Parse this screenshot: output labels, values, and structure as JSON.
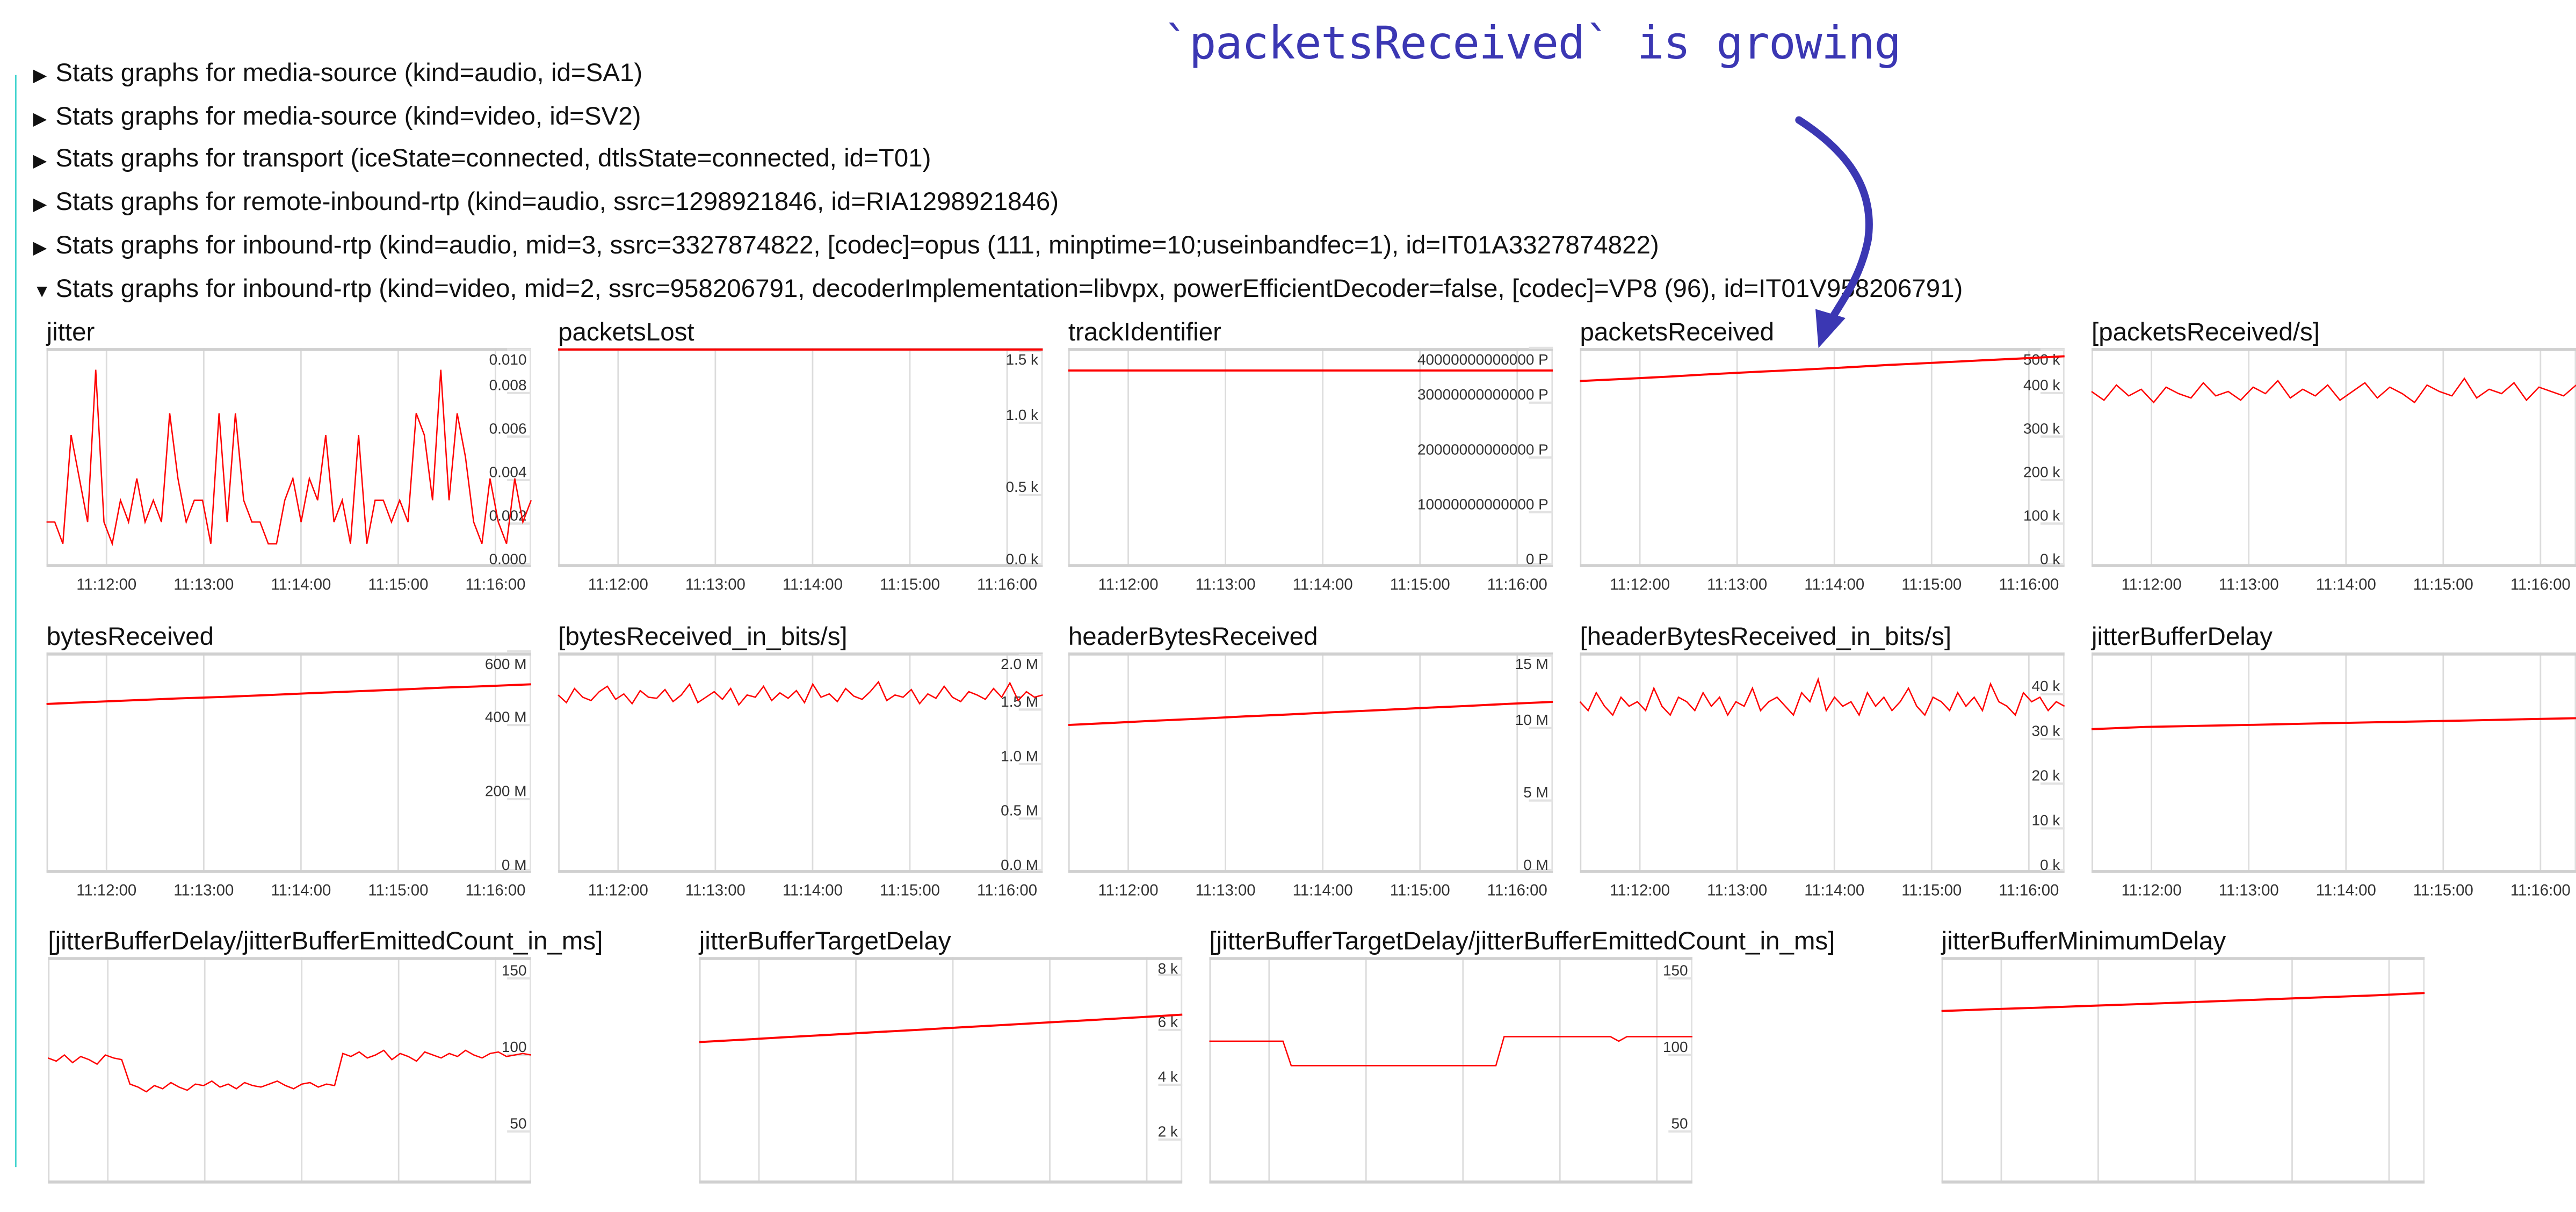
{
  "annotation": {
    "text": "`packetsReceived` is growing",
    "color": "#3b37b3",
    "arrow_icon": "curved-arrow-down"
  },
  "sections": [
    {
      "expanded": false,
      "label": "Stats graphs for media-source (kind=audio, id=SA1)"
    },
    {
      "expanded": false,
      "label": "Stats graphs for media-source (kind=video, id=SV2)"
    },
    {
      "expanded": false,
      "label": "Stats graphs for transport (iceState=connected, dtlsState=connected, id=T01)"
    },
    {
      "expanded": false,
      "label": "Stats graphs for remote-inbound-rtp (kind=audio, ssrc=1298921846, id=RIA1298921846)"
    },
    {
      "expanded": false,
      "label": "Stats graphs for inbound-rtp (kind=audio, mid=3, ssrc=3327874822, [codec]=opus (111, minptime=10;useinbandfec=1), id=IT01A3327874822)"
    },
    {
      "expanded": true,
      "label": "Stats graphs for inbound-rtp (kind=video, mid=2, ssrc=958206791, decoderImplementation=libvpx, powerEfficientDecoder=false, [codec]=VP8 (96), id=IT01V958206791)"
    }
  ],
  "icons": {
    "collapsed": "▶",
    "expanded": "▼"
  },
  "line_color": "#ff0000",
  "time_axis": {
    "xlim": [
      "11:11:23",
      "11:16:22"
    ],
    "ticks": [
      "11:12:00",
      "11:13:00",
      "11:14:00",
      "11:15:00",
      "11:16:00"
    ]
  },
  "chart_data": [
    {
      "type": "line",
      "title": "jitter",
      "ylim": [
        0,
        0.01
      ],
      "yticks": [
        {
          "value": 0,
          "label": "0.000"
        },
        {
          "value": 0.002,
          "label": "0.002"
        },
        {
          "value": 0.004,
          "label": "0.004"
        },
        {
          "value": 0.006,
          "label": "0.006"
        },
        {
          "value": 0.008,
          "label": "0.008"
        },
        {
          "value": 0.01,
          "label": "0.010"
        }
      ],
      "values": [
        0.002,
        0.002,
        0.001,
        0.006,
        0.004,
        0.002,
        0.009,
        0.002,
        0.001,
        0.003,
        0.002,
        0.004,
        0.002,
        0.003,
        0.002,
        0.007,
        0.004,
        0.002,
        0.003,
        0.003,
        0.001,
        0.007,
        0.002,
        0.007,
        0.003,
        0.002,
        0.002,
        0.001,
        0.001,
        0.003,
        0.004,
        0.002,
        0.004,
        0.003,
        0.006,
        0.002,
        0.003,
        0.001,
        0.006,
        0.001,
        0.003,
        0.003,
        0.002,
        0.003,
        0.002,
        0.007,
        0.006,
        0.003,
        0.009,
        0.003,
        0.007,
        0.005,
        0.002,
        0.001,
        0.004,
        0.002,
        0.001,
        0.004,
        0.002,
        0.003
      ]
    },
    {
      "type": "line",
      "title": "packetsLost",
      "ylim": [
        0,
        1510
      ],
      "yticks": [
        {
          "value": 0,
          "label": "0.0 k"
        },
        {
          "value": 500,
          "label": "0.5 k"
        },
        {
          "value": 1000,
          "label": "1.0 k"
        },
        {
          "value": 1500,
          "label": "1.5 k"
        }
      ],
      "values": [
        1508,
        1508
      ]
    },
    {
      "type": "line",
      "title": "trackIdentifier",
      "ylim": [
        0,
        39700000000000
      ],
      "yticks": [
        {
          "value": 0,
          "label": "0 P"
        },
        {
          "value": 10000000000000,
          "label": "10000000000000 P"
        },
        {
          "value": 20000000000000,
          "label": "20000000000000 P"
        },
        {
          "value": 30000000000000,
          "label": "30000000000000 P"
        },
        {
          "value": 40000000000000,
          "label": "40000000000000 P"
        }
      ],
      "values": [
        35600000000000,
        35600000000000
      ]
    },
    {
      "type": "line",
      "title": "packetsReceived",
      "ylim": [
        0,
        500000
      ],
      "yticks": [
        {
          "value": 0,
          "label": "0 k"
        },
        {
          "value": 100000,
          "label": "100 k"
        },
        {
          "value": 200000,
          "label": "200 k"
        },
        {
          "value": 300000,
          "label": "300 k"
        },
        {
          "value": 400000,
          "label": "400 k"
        },
        {
          "value": 500000,
          "label": "500 k"
        }
      ],
      "values": [
        424000,
        429000,
        434000,
        440000,
        445000,
        450000,
        455000,
        461000,
        466000,
        471000,
        476000,
        481000
      ]
    },
    {
      "type": "line",
      "title": "[packetsReceived/s]",
      "ylim": [
        0,
        100
      ],
      "yticks": [],
      "values": [
        80,
        76,
        83,
        78,
        81,
        75,
        82,
        79,
        77,
        84,
        78,
        80,
        76,
        82,
        79,
        85,
        77,
        81,
        78,
        83,
        76,
        80,
        84,
        77,
        82,
        79,
        75,
        83,
        80,
        78,
        86,
        77,
        81,
        79,
        84,
        76,
        82,
        80,
        78,
        83
      ]
    },
    {
      "type": "line",
      "title": "bytesReceived",
      "ylim": [
        0,
        592000000
      ],
      "yticks": [
        {
          "value": 0,
          "label": "0 M"
        },
        {
          "value": 200000000,
          "label": "200 M"
        },
        {
          "value": 400000000,
          "label": "400 M"
        },
        {
          "value": 600000000,
          "label": "600 M"
        }
      ],
      "values": [
        453000000,
        458000000,
        463000000,
        468000000,
        472000000,
        477000000,
        482000000,
        487000000,
        492000000,
        497000000,
        501000000,
        506000000
      ]
    },
    {
      "type": "line",
      "title": "[bytesReceived_in_bits/s]",
      "ylim": [
        0,
        2010000
      ],
      "yticks": [
        {
          "value": 0,
          "label": "0.0 M"
        },
        {
          "value": 500000,
          "label": "0.5 M"
        },
        {
          "value": 1000000,
          "label": "1.0 M"
        },
        {
          "value": 1500000,
          "label": "1.5 M"
        },
        {
          "value": 2000000,
          "label": "2.0 M"
        }
      ],
      "values": [
        1620000,
        1550000,
        1680000,
        1600000,
        1570000,
        1650000,
        1700000,
        1580000,
        1630000,
        1540000,
        1660000,
        1600000,
        1590000,
        1670000,
        1560000,
        1620000,
        1720000,
        1550000,
        1600000,
        1650000,
        1580000,
        1680000,
        1530000,
        1620000,
        1600000,
        1700000,
        1570000,
        1640000,
        1590000,
        1660000,
        1550000,
        1720000,
        1600000,
        1630000,
        1560000,
        1680000,
        1610000,
        1580000,
        1650000,
        1740000,
        1570000,
        1620000,
        1600000,
        1670000,
        1540000,
        1630000,
        1590000,
        1700000,
        1600000,
        1560000,
        1650000,
        1620000,
        1580000,
        1680000,
        1600000,
        1730000,
        1570000,
        1650000,
        1600000,
        1620000
      ]
    },
    {
      "type": "line",
      "title": "headerBytesReceived",
      "ylim": [
        0,
        15100000
      ],
      "yticks": [
        {
          "value": 0,
          "label": "0 M"
        },
        {
          "value": 5000000,
          "label": "5 M"
        },
        {
          "value": 10000000,
          "label": "10 M"
        },
        {
          "value": 15000000,
          "label": "15 M"
        }
      ],
      "values": [
        10100000,
        10250000,
        10400000,
        10540000,
        10690000,
        10830000,
        10980000,
        11120000,
        11270000,
        11410000,
        11560000,
        11700000
      ]
    },
    {
      "type": "line",
      "title": "[headerBytesReceived_in_bits/s]",
      "ylim": [
        0,
        49000
      ],
      "yticks": [
        {
          "value": 0,
          "label": "0 k"
        },
        {
          "value": 10000,
          "label": "10 k"
        },
        {
          "value": 20000,
          "label": "20 k"
        },
        {
          "value": 30000,
          "label": "30 k"
        },
        {
          "value": 40000,
          "label": "40 k"
        },
        {
          "value": 50000,
          "label": "50 k"
        }
      ],
      "values": [
        38000,
        36000,
        40000,
        37000,
        35000,
        39000,
        37000,
        38000,
        36000,
        41000,
        37000,
        35000,
        39000,
        38000,
        36000,
        40000,
        37000,
        39000,
        35000,
        38000,
        37000,
        41000,
        36000,
        38000,
        39000,
        37000,
        35000,
        40000,
        38000,
        43000,
        36000,
        39000,
        37000,
        38000,
        35000,
        40000,
        37000,
        39000,
        36000,
        38000,
        41000,
        37000,
        35000,
        39000,
        38000,
        36000,
        40000,
        37000,
        39000,
        36000,
        42000,
        38000,
        37000,
        35000,
        40000,
        38000,
        39000,
        36000,
        38000,
        37000
      ]
    },
    {
      "type": "line",
      "title": "jitterBufferDelay",
      "ylim": [
        0,
        100
      ],
      "yticks": [],
      "values": [
        65,
        66,
        66.5,
        67,
        67.5,
        68,
        68.5,
        69,
        69.5,
        70
      ]
    },
    {
      "type": "line",
      "title": "[jitterBufferDelay/jitterBufferEmittedCount_in_ms]",
      "ylim": [
        16,
        163
      ],
      "yticks": [
        {
          "value": 50,
          "label": "50"
        },
        {
          "value": 100,
          "label": "100"
        },
        {
          "value": 150,
          "label": "150"
        }
      ],
      "values": [
        97,
        95,
        99,
        94,
        98,
        96,
        93,
        99,
        97,
        96,
        80,
        78,
        75,
        79,
        77,
        81,
        78,
        76,
        80,
        79,
        82,
        78,
        80,
        77,
        81,
        79,
        78,
        80,
        82,
        79,
        77,
        80,
        81,
        78,
        80,
        79,
        100,
        98,
        101,
        97,
        99,
        102,
        96,
        100,
        98,
        95,
        101,
        99,
        97,
        100,
        98,
        102,
        99,
        97,
        100,
        101,
        98,
        99,
        100,
        99
      ]
    },
    {
      "type": "line",
      "title": "jitterBufferTargetDelay",
      "ylim": [
        400,
        8600
      ],
      "yticks": [
        {
          "value": 2000,
          "label": "2 k"
        },
        {
          "value": 4000,
          "label": "4 k"
        },
        {
          "value": 6000,
          "label": "6 k"
        },
        {
          "value": 8000,
          "label": "8 k"
        }
      ],
      "values": [
        5500,
        5590,
        5680,
        5770,
        5860,
        5950,
        6040,
        6130,
        6220,
        6310,
        6400,
        6500
      ]
    },
    {
      "type": "line",
      "title": "[jitterBufferTargetDelay/jitterBufferEmittedCount_in_ms]",
      "ylim": [
        16,
        163
      ],
      "yticks": [
        {
          "value": 50,
          "label": "50"
        },
        {
          "value": 100,
          "label": "100"
        },
        {
          "value": 150,
          "label": "150"
        }
      ],
      "values": [
        108,
        108,
        108,
        108,
        108,
        108,
        108,
        108,
        108,
        108,
        92,
        92,
        92,
        92,
        92,
        92,
        92,
        92,
        92,
        92,
        92,
        92,
        92,
        92,
        92,
        92,
        92,
        92,
        92,
        92,
        92,
        92,
        92,
        92,
        92,
        92,
        111,
        111,
        111,
        111,
        111,
        111,
        111,
        111,
        111,
        111,
        111,
        111,
        111,
        111,
        108,
        111,
        111,
        111,
        111,
        111,
        111,
        111,
        111,
        111
      ]
    },
    {
      "type": "line",
      "title": "jitterBufferMinimumDelay",
      "ylim": [
        0,
        100
      ],
      "yticks": [],
      "values": [
        76,
        76.8,
        77.5,
        78.3,
        79,
        79.8,
        80.6,
        81.4,
        82.2,
        83,
        84
      ]
    }
  ]
}
